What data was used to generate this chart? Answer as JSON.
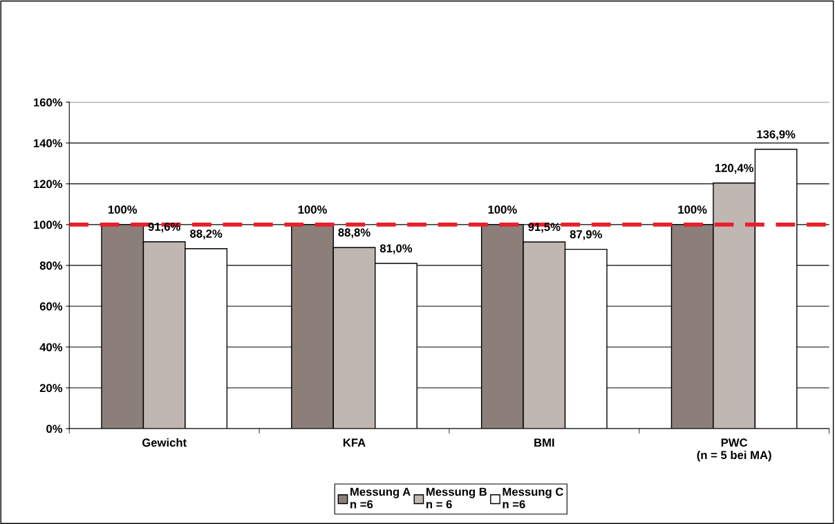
{
  "chart_data": {
    "type": "bar",
    "categories": [
      "Gewicht",
      "KFA",
      "BMI",
      "PWC\n(n = 5 bei MA)"
    ],
    "series": [
      {
        "name": "Messung A\nn =6",
        "color": "#8c7f7a",
        "values": [
          100,
          100,
          100,
          100
        ],
        "value_labels": [
          "100%",
          "100%",
          "100%",
          "100%"
        ]
      },
      {
        "name": "Messung B\nn = 6",
        "color": "#c0b6b2",
        "values": [
          91.6,
          88.8,
          91.5,
          120.4
        ],
        "value_labels": [
          "91,6%",
          "88,8%",
          "91,5%",
          "120,4%"
        ]
      },
      {
        "name": "Messung C\nn =6",
        "color": "#ffffff",
        "values": [
          88.2,
          81.0,
          87.9,
          136.9
        ],
        "value_labels": [
          "88,2%",
          "81,0%",
          "87,9%",
          "136,9%"
        ]
      }
    ],
    "ylim": [
      0,
      160
    ],
    "yticks": [
      {
        "value": 0,
        "label": "0%"
      },
      {
        "value": 20,
        "label": "20%"
      },
      {
        "value": 40,
        "label": "40%"
      },
      {
        "value": 60,
        "label": "60%"
      },
      {
        "value": 80,
        "label": "80%"
      },
      {
        "value": 100,
        "label": "100%"
      },
      {
        "value": 120,
        "label": "120%"
      },
      {
        "value": 140,
        "label": "140%"
      },
      {
        "value": 160,
        "label": "160%"
      }
    ],
    "ref_lines": [
      {
        "axis": "y",
        "value": 100,
        "color": "#e8202a",
        "line_style": "dashed"
      }
    ],
    "grid": "y",
    "legend": "bottom"
  }
}
